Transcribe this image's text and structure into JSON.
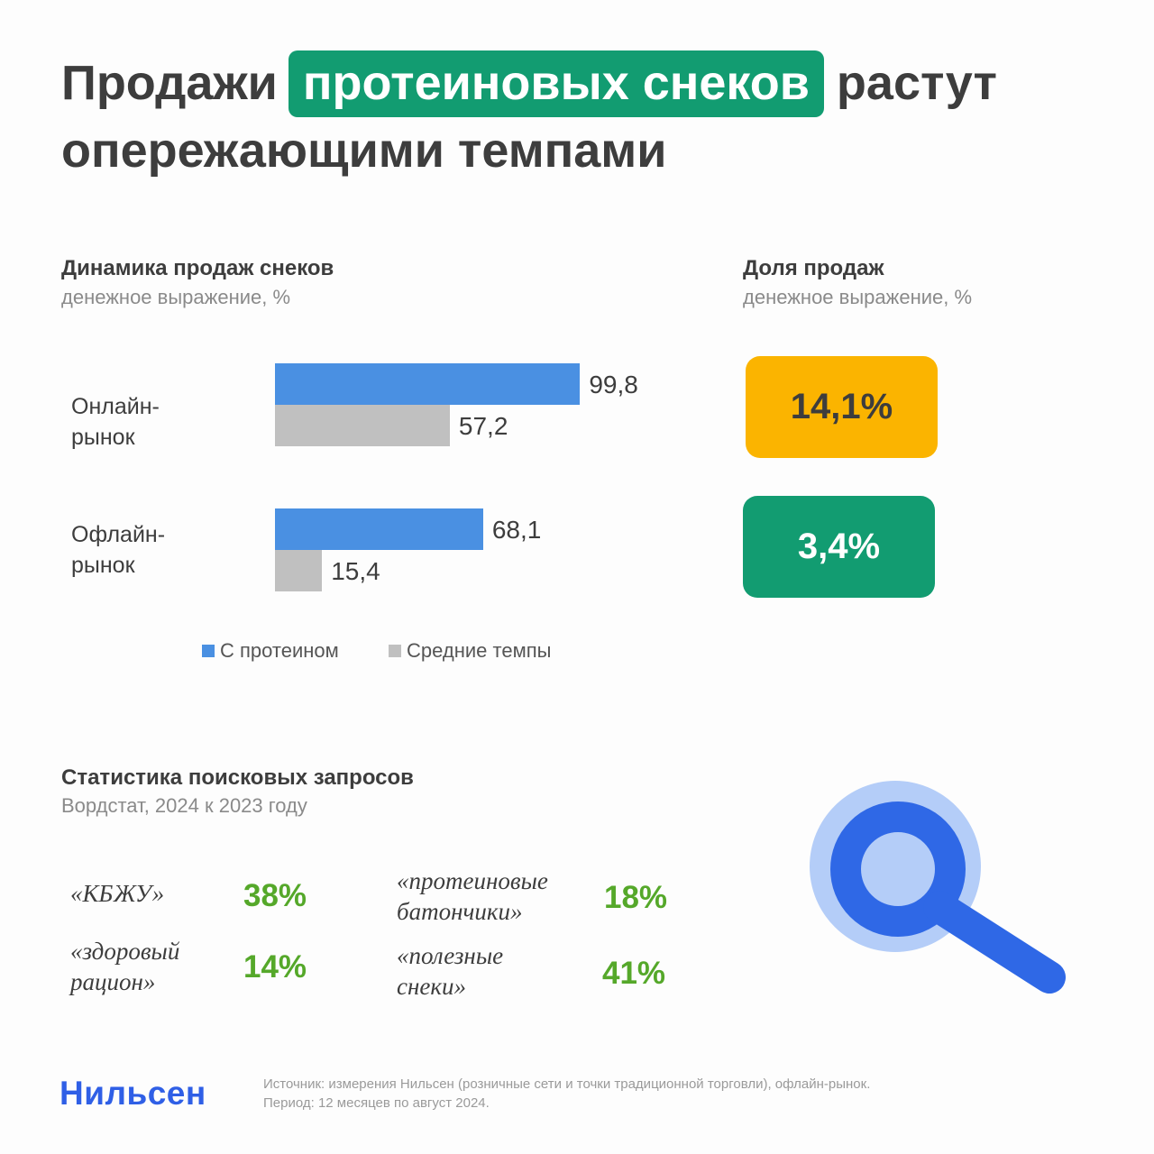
{
  "header": {
    "title_part1": "Продажи",
    "title_highlight": "протеиновых снеков",
    "title_part2": "растут",
    "title_line2": "опережающими темпами"
  },
  "dynamics": {
    "heading": "Динамика продаж снеков",
    "subheading": "денежное выражение, %"
  },
  "chart_data": {
    "type": "bar",
    "orientation": "horizontal",
    "categories": [
      "Онлайн-\nрынок",
      "Офлайн-\nрынок"
    ],
    "series": [
      {
        "name": "С протеином",
        "values": [
          99.8,
          68.1
        ],
        "labels": [
          "99,8",
          "68,1"
        ],
        "color": "#4a90e2"
      },
      {
        "name": "Средние темпы",
        "values": [
          57.2,
          15.4
        ],
        "labels": [
          "57,2",
          "15,4"
        ],
        "color": "#c0c0c0"
      }
    ],
    "xlim": [
      0,
      100
    ],
    "grid": false,
    "legend_position": "bottom"
  },
  "share": {
    "heading": "Доля продаж",
    "subheading": "денежное выражение, %",
    "online_value": "14,1%",
    "online_color": "#fbb400",
    "offline_value": "3,4%",
    "offline_color": "#129c71"
  },
  "search": {
    "heading": "Статистика поисковых запросов",
    "subheading": "Вордстат, 2024 к 2023 году",
    "items": [
      {
        "label": "«КБЖУ»",
        "value": "38%"
      },
      {
        "label": "«здоровый\nрацион»",
        "value": "14%"
      },
      {
        "label": "«протеиновые\nбатончики»",
        "value": "18%"
      },
      {
        "label": "«полезные\nснеки»",
        "value": "41%"
      }
    ],
    "icon": "magnifier-icon"
  },
  "footer": {
    "brand": "Нильсен",
    "source": "Источник: измерения Нильсен (розничные сети и точки традиционной торговли), офлайн-рынок.",
    "period": "Период: 12 месяцев по август 2024."
  }
}
